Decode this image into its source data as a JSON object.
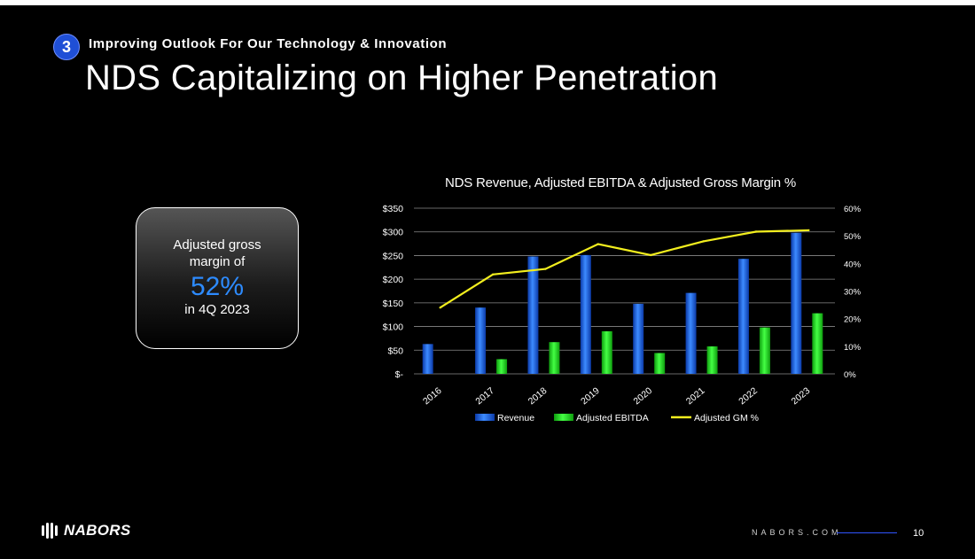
{
  "header": {
    "section_number": "3",
    "kicker": "Improving Outlook For Our Technology & Innovation",
    "title": "NDS Capitalizing on Higher Penetration"
  },
  "callout": {
    "line1": "Adjusted gross",
    "line2": "margin of",
    "value": "52%",
    "line3": "in 4Q 2023"
  },
  "chart_data": {
    "type": "bar",
    "title": "NDS Revenue, Adjusted EBITDA & Adjusted Gross Margin %",
    "categories": [
      "2016",
      "2017",
      "2018",
      "2019",
      "2020",
      "2021",
      "2022",
      "2023"
    ],
    "series": [
      {
        "name": "Revenue",
        "kind": "bar",
        "axis": "left",
        "color": "#1e6bf0",
        "values": [
          63,
          140,
          248,
          251,
          148,
          171,
          243,
          298
        ]
      },
      {
        "name": "Adjusted EBITDA",
        "kind": "bar",
        "axis": "left",
        "color": "#22e022",
        "values": [
          0,
          31,
          67,
          90,
          44,
          58,
          98,
          128
        ]
      },
      {
        "name": "Adjusted GM %",
        "kind": "line",
        "axis": "right",
        "color": "#f2ee1e",
        "values": [
          24,
          36,
          38,
          47,
          43,
          48,
          51.5,
          52
        ]
      }
    ],
    "y_left": {
      "min": 0,
      "max": 350,
      "step": 50,
      "tick_labels": [
        "$-",
        "$50",
        "$100",
        "$150",
        "$200",
        "$250",
        "$300",
        "$350"
      ]
    },
    "y_right": {
      "min": 0,
      "max": 60,
      "step": 10,
      "tick_labels": [
        "0%",
        "10%",
        "20%",
        "30%",
        "40%",
        "50%",
        "60%"
      ]
    },
    "grid": true,
    "legend_position": "bottom"
  },
  "footer": {
    "logo_text": "NABORS",
    "url": "NABORS.COM",
    "page_number": "10"
  }
}
